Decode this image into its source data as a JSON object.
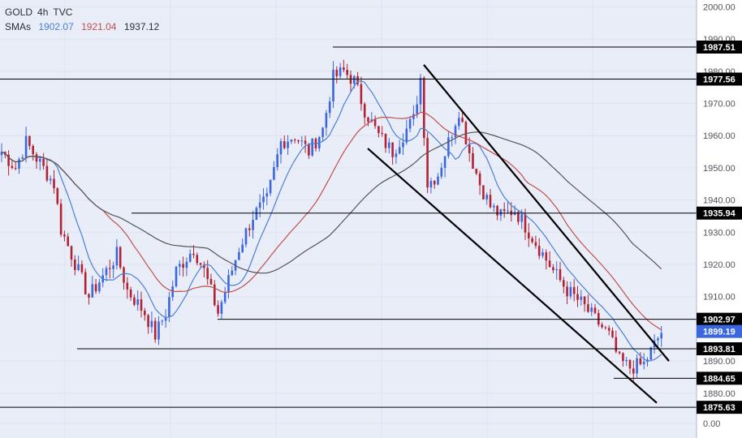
{
  "chart_data": {
    "type": "candlestick",
    "symbol": "GOLD",
    "timeframe": "4h",
    "source": "TVC",
    "sma_label": "SMAs",
    "sma_values": [
      "1902.07",
      "1921.04",
      "1937.12"
    ],
    "colors": {
      "background": "#e9edf8",
      "up": "#3a66e0",
      "down": "#b02234",
      "sma_fast": "#4a7fd6",
      "sma_mid": "#c0504d",
      "sma_slow": "#555555",
      "last_price_bg": "#3a66e0",
      "level_bg": "#000000"
    },
    "y_axis": {
      "ticks": [
        "2000.00",
        "1990.00",
        "1980.00",
        "1970.00",
        "1960.00",
        "1950.00",
        "1940.00",
        "1930.00",
        "1920.00",
        "1910.00",
        "1890.00",
        "1880.00",
        "0.00"
      ]
    },
    "levels": [
      "1987.51",
      "1977.56",
      "1935.94",
      "1902.97",
      "1893.81",
      "1884.65",
      "1875.63"
    ],
    "last_price": "1899.19",
    "grid": true
  }
}
